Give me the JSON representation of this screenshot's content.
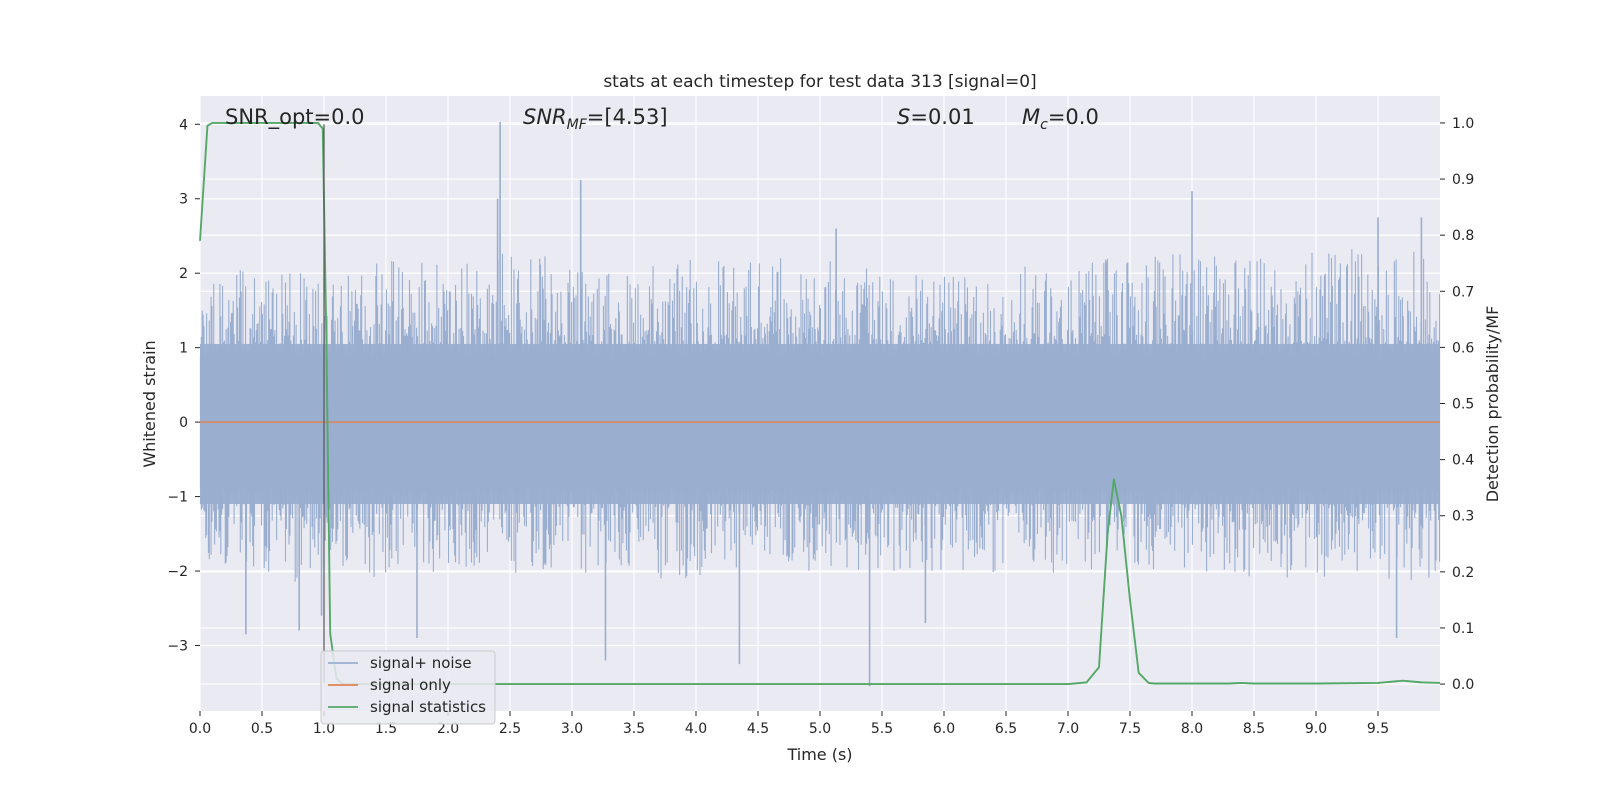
{
  "chart_data": {
    "type": "line",
    "title": "stats at each timestep for test data 313 [signal=0]",
    "xlabel": "Time (s)",
    "ylabel_left": "Whitened strain",
    "ylabel_right": "Detection probability/MF",
    "xlim": [
      0,
      10
    ],
    "ylim_left": [
      -3.88,
      4.38
    ],
    "ylim_right": [
      -0.048,
      1.048
    ],
    "x_ticks": [
      0.0,
      0.5,
      1.0,
      1.5,
      2.0,
      2.5,
      3.0,
      3.5,
      4.0,
      4.5,
      5.0,
      5.5,
      6.0,
      6.5,
      7.0,
      7.5,
      8.0,
      8.5,
      9.0,
      9.5
    ],
    "x_tick_labels": [
      "0.0",
      "0.5",
      "1.0",
      "1.5",
      "2.0",
      "2.5",
      "3.0",
      "3.5",
      "4.0",
      "4.5",
      "5.0",
      "5.5",
      "6.0",
      "6.5",
      "7.0",
      "7.5",
      "8.0",
      "8.5",
      "9.0",
      "9.5"
    ],
    "y_left_ticks": [
      4,
      3,
      2,
      1,
      0,
      -1,
      -2,
      -3
    ],
    "y_left_tick_labels": [
      "4",
      "3",
      "2",
      "1",
      "0",
      "−1",
      "−2",
      "−3"
    ],
    "y_right_ticks": [
      1.0,
      0.9,
      0.8,
      0.7,
      0.6,
      0.5,
      0.4,
      0.3,
      0.2,
      0.1,
      0.0
    ],
    "y_right_tick_labels": [
      "1.0",
      "0.9",
      "0.8",
      "0.7",
      "0.6",
      "0.5",
      "0.4",
      "0.3",
      "0.2",
      "0.1",
      "0.0"
    ],
    "grid": true,
    "legend_position": "lower-left",
    "annotations": {
      "snr_opt": "SNR_opt=0.0",
      "snr_mf_sym": "SNR",
      "snr_mf_sub": "MF",
      "snr_mf_val": "=[4.53]",
      "s_sym": "S",
      "s_val": "=0.01",
      "mc_sym": "M",
      "mc_sub": "c",
      "mc_val": "=0.0"
    },
    "series": [
      {
        "name": "signal+ noise",
        "axis": "left",
        "color": "#9aaed0",
        "style": "dense noise trace",
        "envelope": {
          "x": [
            0,
            0.5,
            1.0,
            1.5,
            2.0,
            2.5,
            3.0,
            3.5,
            4.0,
            4.5,
            5.0,
            5.5,
            6.0,
            6.5,
            7.0,
            7.5,
            8.0,
            8.5,
            9.0,
            9.5,
            10.0
          ],
          "upper": [
            2.0,
            2.1,
            2.0,
            2.2,
            2.1,
            2.3,
            2.2,
            2.1,
            2.2,
            2.2,
            2.2,
            2.1,
            2.1,
            2.1,
            2.2,
            2.2,
            2.3,
            2.2,
            2.3,
            2.4,
            2.3
          ],
          "lower": [
            -1.9,
            -2.1,
            -2.2,
            -2.1,
            -2.0,
            -2.1,
            -2.0,
            -2.1,
            -2.1,
            -2.0,
            -2.0,
            -2.0,
            -2.0,
            -2.1,
            -2.0,
            -2.0,
            -2.0,
            -2.1,
            -2.1,
            -2.2,
            -2.1
          ]
        },
        "peaks": [
          {
            "x": 0.37,
            "y": -2.85
          },
          {
            "x": 0.8,
            "y": -2.8
          },
          {
            "x": 0.98,
            "y": -2.6
          },
          {
            "x": 1.75,
            "y": -2.9
          },
          {
            "x": 2.42,
            "y": 4.03
          },
          {
            "x": 2.4,
            "y": 3.0
          },
          {
            "x": 3.07,
            "y": 3.25
          },
          {
            "x": 3.27,
            "y": -3.2
          },
          {
            "x": 4.35,
            "y": -3.25
          },
          {
            "x": 5.4,
            "y": -3.55
          },
          {
            "x": 5.13,
            "y": 2.6
          },
          {
            "x": 5.85,
            "y": -2.7
          },
          {
            "x": 8.0,
            "y": 3.1
          },
          {
            "x": 9.5,
            "y": 2.75
          },
          {
            "x": 9.65,
            "y": -2.9
          },
          {
            "x": 9.85,
            "y": 2.75
          }
        ]
      },
      {
        "name": "signal only",
        "axis": "left",
        "color": "#dd8452",
        "x": [
          0,
          10
        ],
        "y": [
          0,
          0
        ]
      },
      {
        "name": "signal statistics",
        "axis": "right",
        "color": "#55a868",
        "x": [
          0.0,
          0.06,
          0.1,
          0.2,
          0.5,
          0.9,
          0.95,
          0.99,
          1.02,
          1.05,
          1.1,
          1.15,
          1.2,
          2.0,
          3.0,
          4.0,
          5.0,
          6.0,
          6.5,
          7.0,
          7.15,
          7.25,
          7.32,
          7.37,
          7.43,
          7.5,
          7.57,
          7.65,
          7.7,
          8.0,
          8.3,
          8.4,
          8.5,
          9.0,
          9.5,
          9.7,
          9.85,
          10.0
        ],
        "y": [
          0.79,
          0.995,
          1.0,
          1.0,
          1.0,
          1.0,
          1.0,
          0.99,
          0.6,
          0.09,
          0.01,
          0.0,
          0.0,
          0.0,
          0.0,
          0.0,
          0.0,
          0.0,
          0.0,
          0.0,
          0.003,
          0.03,
          0.27,
          0.365,
          0.3,
          0.15,
          0.02,
          0.002,
          0.001,
          0.001,
          0.001,
          0.002,
          0.001,
          0.001,
          0.002,
          0.006,
          0.003,
          0.002
        ]
      }
    ]
  }
}
